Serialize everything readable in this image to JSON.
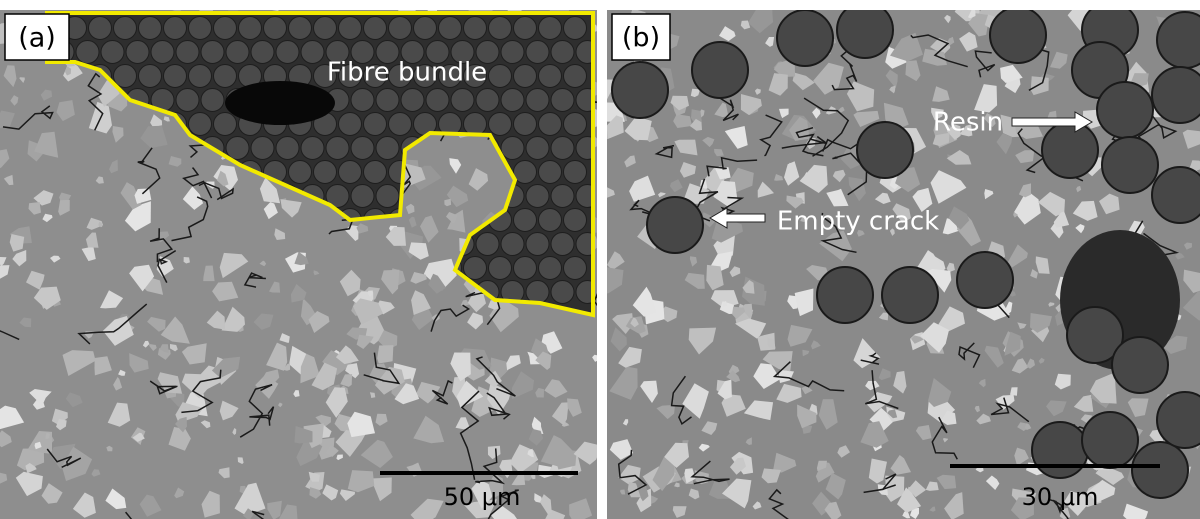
{
  "panels": [
    {
      "label": "(a)",
      "annotations": [
        "Fibre bundle"
      ],
      "scale_bar": "50 μm"
    },
    {
      "label": "(b)",
      "annotations": [
        "Resin",
        "Empty crack"
      ],
      "scale_bar": "30 μm"
    }
  ]
}
